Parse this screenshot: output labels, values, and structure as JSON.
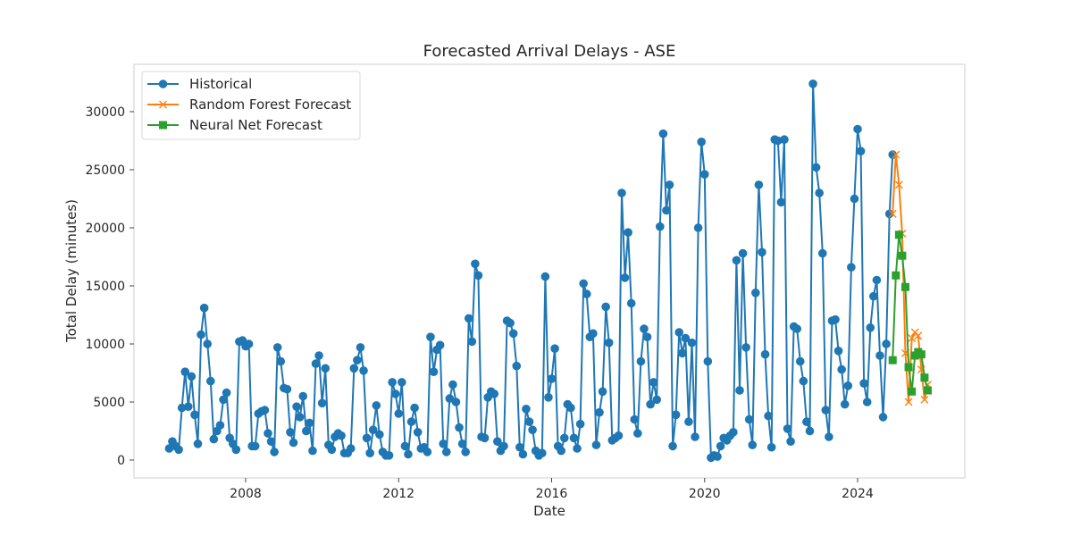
{
  "chart_data": {
    "type": "line",
    "title": "Forecasted Arrival Delays - ASE",
    "xlabel": "Date",
    "ylabel": "Total Delay (minutes)",
    "x_ticks": [
      "2008",
      "2012",
      "2016",
      "2020",
      "2024"
    ],
    "y_ticks": [
      "0",
      "5000",
      "10000",
      "15000",
      "20000",
      "25000",
      "30000"
    ],
    "grid": false,
    "legend": "top-left",
    "series": [
      {
        "name": "Historical",
        "color": "#1f77b4",
        "marker": "circle",
        "x": [
          "2006-01",
          "2006-02",
          "2006-03",
          "2006-04",
          "2006-05",
          "2006-06",
          "2006-07",
          "2006-08",
          "2006-09",
          "2006-10",
          "2006-11",
          "2006-12",
          "2007-01",
          "2007-02",
          "2007-03",
          "2007-04",
          "2007-05",
          "2007-06",
          "2007-07",
          "2007-08",
          "2007-09",
          "2007-10",
          "2007-11",
          "2007-12",
          "2008-01",
          "2008-02",
          "2008-03",
          "2008-04",
          "2008-05",
          "2008-06",
          "2008-07",
          "2008-08",
          "2008-09",
          "2008-10",
          "2008-11",
          "2008-12",
          "2009-01",
          "2009-02",
          "2009-03",
          "2009-04",
          "2009-05",
          "2009-06",
          "2009-07",
          "2009-08",
          "2009-09",
          "2009-10",
          "2009-11",
          "2009-12",
          "2010-01",
          "2010-02",
          "2010-03",
          "2010-04",
          "2010-05",
          "2010-06",
          "2010-07",
          "2010-08",
          "2010-09",
          "2010-10",
          "2010-11",
          "2010-12",
          "2011-01",
          "2011-02",
          "2011-03",
          "2011-04",
          "2011-05",
          "2011-06",
          "2011-07",
          "2011-08",
          "2011-09",
          "2011-10",
          "2011-11",
          "2011-12",
          "2012-01",
          "2012-02",
          "2012-03",
          "2012-04",
          "2012-05",
          "2012-06",
          "2012-07",
          "2012-08",
          "2012-09",
          "2012-10",
          "2012-11",
          "2012-12",
          "2013-01",
          "2013-02",
          "2013-03",
          "2013-04",
          "2013-05",
          "2013-06",
          "2013-07",
          "2013-08",
          "2013-09",
          "2013-10",
          "2013-11",
          "2013-12",
          "2014-01",
          "2014-02",
          "2014-03",
          "2014-04",
          "2014-05",
          "2014-06",
          "2014-07",
          "2014-08",
          "2014-09",
          "2014-10",
          "2014-11",
          "2014-12",
          "2015-01",
          "2015-02",
          "2015-03",
          "2015-04",
          "2015-05",
          "2015-06",
          "2015-07",
          "2015-08",
          "2015-09",
          "2015-10",
          "2015-11",
          "2015-12",
          "2016-01",
          "2016-02",
          "2016-03",
          "2016-04",
          "2016-05",
          "2016-06",
          "2016-07",
          "2016-08",
          "2016-09",
          "2016-10",
          "2016-11",
          "2016-12",
          "2017-01",
          "2017-02",
          "2017-03",
          "2017-04",
          "2017-05",
          "2017-06",
          "2017-07",
          "2017-08",
          "2017-09",
          "2017-10",
          "2017-11",
          "2017-12",
          "2018-01",
          "2018-02",
          "2018-03",
          "2018-04",
          "2018-05",
          "2018-06",
          "2018-07",
          "2018-08",
          "2018-09",
          "2018-10",
          "2018-11",
          "2018-12",
          "2019-01",
          "2019-02",
          "2019-03",
          "2019-04",
          "2019-05",
          "2019-06",
          "2019-07",
          "2019-08",
          "2019-09",
          "2019-10",
          "2019-11",
          "2019-12",
          "2020-01",
          "2020-02",
          "2020-03",
          "2020-04",
          "2020-05",
          "2020-06",
          "2020-07",
          "2020-08",
          "2020-09",
          "2020-10",
          "2020-11",
          "2020-12",
          "2021-01",
          "2021-02",
          "2021-03",
          "2021-04",
          "2021-05",
          "2021-06",
          "2021-07",
          "2021-08",
          "2021-09",
          "2021-10",
          "2021-11",
          "2021-12",
          "2022-01",
          "2022-02",
          "2022-03",
          "2022-04",
          "2022-05",
          "2022-06",
          "2022-07",
          "2022-08",
          "2022-09",
          "2022-10",
          "2022-11",
          "2022-12",
          "2023-01",
          "2023-02",
          "2023-03",
          "2023-04",
          "2023-05",
          "2023-06",
          "2023-07",
          "2023-08",
          "2023-09",
          "2023-10",
          "2023-11",
          "2023-12",
          "2024-01",
          "2024-02",
          "2024-03",
          "2024-04",
          "2024-05",
          "2024-06",
          "2024-07",
          "2024-08",
          "2024-09",
          "2024-10",
          "2024-11",
          "2024-12"
        ],
        "values": [
          1000,
          1600,
          1200,
          900,
          4500,
          7600,
          4600,
          7200,
          3900,
          1400,
          10800,
          13100,
          10000,
          6800,
          1800,
          2500,
          3000,
          5200,
          5800,
          1900,
          1400,
          900,
          10200,
          10300,
          9800,
          10000,
          1200,
          1200,
          4000,
          4200,
          4300,
          2300,
          1600,
          700,
          9700,
          8500,
          6200,
          6100,
          2400,
          1500,
          4600,
          3700,
          5500,
          2500,
          3200,
          800,
          8300,
          9000,
          4900,
          7900,
          1300,
          900,
          2000,
          2300,
          2100,
          600,
          600,
          1000,
          7900,
          8600,
          9700,
          7700,
          1900,
          600,
          2600,
          4700,
          2200,
          700,
          400,
          400,
          6700,
          5700,
          4000,
          6700,
          1200,
          500,
          3300,
          4500,
          2400,
          1000,
          1100,
          700,
          10600,
          7600,
          9500,
          9900,
          1400,
          700,
          5300,
          6500,
          5000,
          2800,
          1400,
          700,
          12200,
          10200,
          16900,
          15900,
          2000,
          1900,
          5400,
          5900,
          5700,
          1600,
          800,
          1200,
          12000,
          11800,
          10900,
          8100,
          1100,
          500,
          4400,
          3300,
          2600,
          800,
          400,
          600,
          15800,
          5400,
          7000,
          9600,
          1200,
          800,
          1900,
          4800,
          4500,
          1900,
          1000,
          3100,
          15200,
          14300,
          10600,
          10900,
          1300,
          4100,
          5900,
          13200,
          10100,
          1700,
          1900,
          2100,
          23000,
          15700,
          19600,
          13500,
          3500,
          2300,
          8500,
          11300,
          10600,
          4800,
          6700,
          5200,
          20100,
          28100,
          21500,
          23700,
          1200,
          3900,
          11000,
          9200,
          10500,
          3300,
          10100,
          2000,
          20000,
          27400,
          24600,
          8500,
          200,
          400,
          300,
          1200,
          1900,
          1700,
          2100,
          2400,
          17200,
          6000,
          17800,
          9700,
          3500,
          1300,
          14400,
          23700,
          17900,
          9100,
          3800,
          1100,
          27600,
          27500,
          22200,
          27600,
          2700,
          1600,
          11500,
          11300,
          8500,
          6800,
          3300,
          2500,
          32400,
          25200,
          23000,
          17800,
          4300,
          2000,
          12000,
          12100,
          9400,
          7800,
          4800,
          6400,
          16600,
          22500,
          28500,
          26600,
          6600,
          5000,
          11400,
          14100,
          15500,
          9000,
          3700,
          10000,
          21200,
          26300
        ]
      },
      {
        "name": "Random Forest Forecast",
        "color": "#ff7f0e",
        "marker": "x",
        "x": [
          "2024-12",
          "2025-01",
          "2025-02",
          "2025-03",
          "2025-04",
          "2025-05",
          "2025-06",
          "2025-07",
          "2025-08",
          "2025-09",
          "2025-10",
          "2025-11"
        ],
        "values": [
          21200,
          26300,
          23700,
          19500,
          9200,
          5000,
          10500,
          11000,
          10700,
          7800,
          5200,
          6500
        ]
      },
      {
        "name": "Neural Net Forecast",
        "color": "#2ca02c",
        "marker": "square",
        "x": [
          "2024-12",
          "2025-01",
          "2025-02",
          "2025-03",
          "2025-04",
          "2025-05",
          "2025-06",
          "2025-07",
          "2025-08",
          "2025-09",
          "2025-10",
          "2025-11"
        ],
        "values": [
          8600,
          15900,
          19400,
          17600,
          14900,
          8000,
          5900,
          9000,
          9300,
          9100,
          7100,
          6000
        ]
      }
    ]
  }
}
